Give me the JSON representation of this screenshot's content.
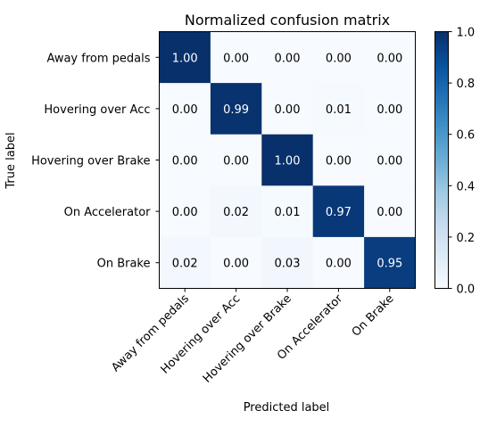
{
  "chart_data": {
    "type": "heatmap",
    "title": "Normalized confusion matrix",
    "xlabel": "Predicted label",
    "ylabel": "True label",
    "x_categories": [
      "Away from pedals",
      "Hovering over Acc",
      "Hovering over Brake",
      "On Accelerator",
      "On Brake"
    ],
    "y_categories": [
      "Away from pedals",
      "Hovering over Acc",
      "Hovering over Brake",
      "On Accelerator",
      "On Brake"
    ],
    "values": [
      [
        1.0,
        0.0,
        0.0,
        0.0,
        0.0
      ],
      [
        0.0,
        0.99,
        0.0,
        0.01,
        0.0
      ],
      [
        0.0,
        0.0,
        1.0,
        0.0,
        0.0
      ],
      [
        0.0,
        0.02,
        0.01,
        0.97,
        0.0
      ],
      [
        0.02,
        0.0,
        0.03,
        0.0,
        0.95
      ]
    ],
    "value_format": "2 decimals",
    "colormap": "Blues",
    "color_low": "#f7fbff",
    "color_high": "#08306b",
    "colorbar": {
      "range": [
        0.0,
        1.0
      ],
      "ticks": [
        "0.0",
        "0.2",
        "0.4",
        "0.6",
        "0.8",
        "1.0"
      ]
    },
    "annotation_colors": {
      "dark_cell": "#ffffff",
      "light_cell": "#000000"
    },
    "x_tick_rotation_deg": 45
  }
}
